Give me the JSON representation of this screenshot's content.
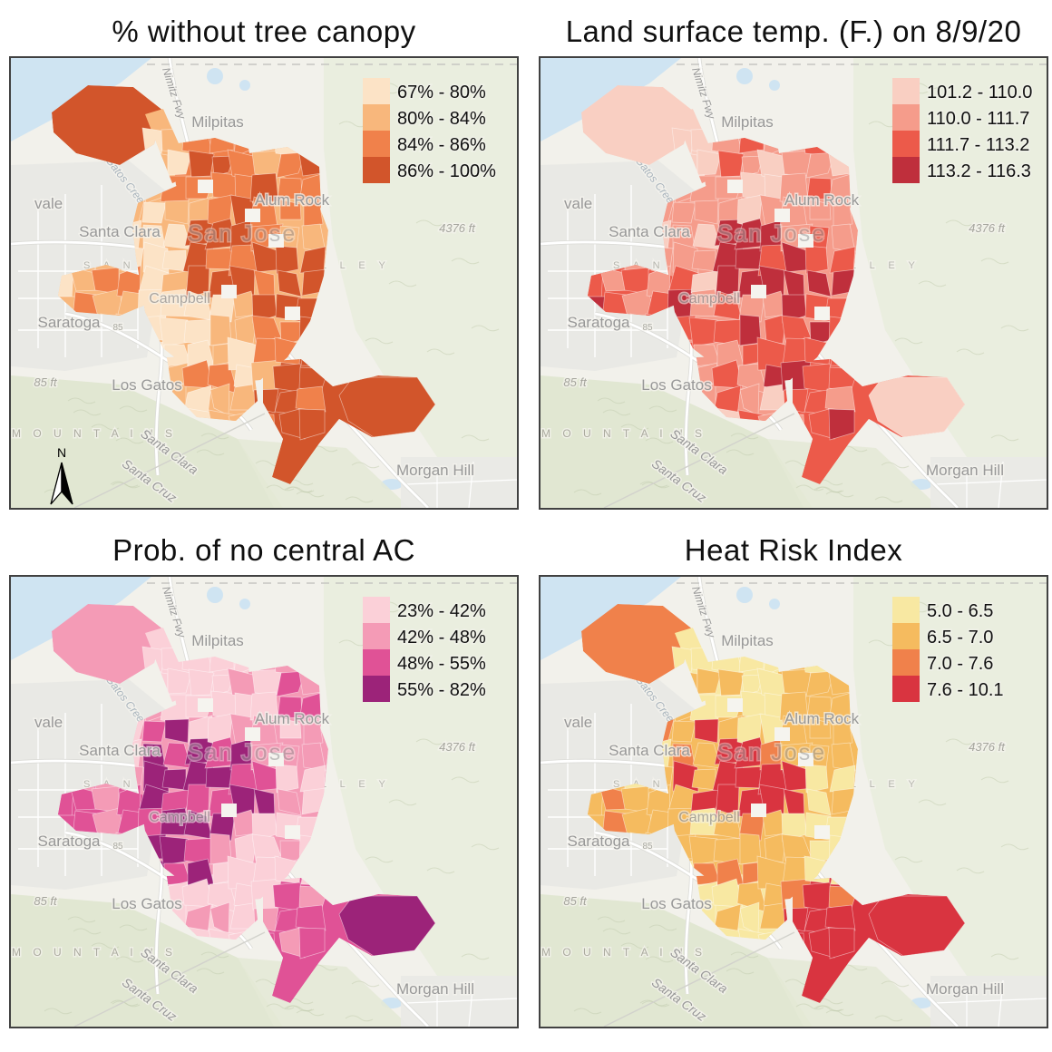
{
  "maps": [
    {
      "id": "tree-canopy",
      "title": "% without tree canopy",
      "legend": [
        {
          "label": "67% - 80%",
          "color": "#fce3c6"
        },
        {
          "label": "80% - 84%",
          "color": "#f8b77c"
        },
        {
          "label": "84% - 86%",
          "color": "#f0814b"
        },
        {
          "label": "86% - 100%",
          "color": "#d2552b"
        }
      ],
      "region_classes": "42334412122444",
      "has_north_arrow": true
    },
    {
      "id": "land-surface-temp",
      "title": "Land surface temp. (F.) on 8/9/20",
      "legend": [
        {
          "label": "101.2 - 110.0",
          "color": "#f9cfc2"
        },
        {
          "label": "110.0 - 111.7",
          "color": "#f59c8b"
        },
        {
          "label": "111.7 - 113.2",
          "color": "#ec5a4a"
        },
        {
          "label": "113.2 - 116.3",
          "color": "#bf2f3c"
        }
      ],
      "region_classes": "11224323332313",
      "has_north_arrow": false
    },
    {
      "id": "prob-no-central-ac",
      "title": "Prob. of no central AC",
      "legend": [
        {
          "label": "23% - 42%",
          "color": "#fbd0d8"
        },
        {
          "label": "42% - 48%",
          "color": "#f49bb6"
        },
        {
          "label": "48% - 55%",
          "color": "#e05296"
        },
        {
          "label": "55% - 82%",
          "color": "#9c2379"
        }
      ],
      "region_classes": "21124143411343",
      "has_north_arrow": false
    },
    {
      "id": "heat-risk-index",
      "title": "Heat Risk Index",
      "legend": [
        {
          "label": "5.0 - 6.5",
          "color": "#f8e8a2"
        },
        {
          "label": "6.5 - 7.0",
          "color": "#f5bb5f"
        },
        {
          "label": "7.0 - 7.6",
          "color": "#f0814b"
        },
        {
          "label": "7.6 - 10.1",
          "color": "#d93440"
        }
      ],
      "region_classes": "31124132221444",
      "has_north_arrow": true
    }
  ],
  "basemap": {
    "labels": {
      "sunnyvale": "vale",
      "milpitas": "Milpitas",
      "alum_rock": "Alum Rock",
      "santa_clara": "Santa Clara",
      "campbell": "Campbell",
      "saratoga": "Saratoga",
      "los_gatos": "Los Gatos",
      "morgan_hill": "Morgan Hill",
      "san_jose": "San Jose",
      "elev_small": "85 ft",
      "elev_big": "4376 ft",
      "mountains": "M O U N T A I N S",
      "county_a": "Santa Clara",
      "county_b": "Santa Cruz",
      "nimitz_fwy": "Nimitz Fwy",
      "creek": "Los Gatos Creek",
      "valley": "S A N T A   C L A R A   V A L L E Y",
      "hwy_85": "85",
      "north": "N"
    },
    "colors": {
      "bg": "#f2f1eb",
      "water": "#cfe4f2",
      "creek": "#c5ddee",
      "hill_east": "#e7ecdb",
      "hill_sw": "#dfe6cf",
      "hill_mid": "#e4e9d6",
      "hill_texture": "#c2cbae",
      "urban_grid": "#e9e9e5",
      "road_fill": "#ffffff",
      "road_casing": "#dcdcd8",
      "hole": "#f5f4ef",
      "label": "#989898",
      "legend_text": "#111111"
    }
  }
}
